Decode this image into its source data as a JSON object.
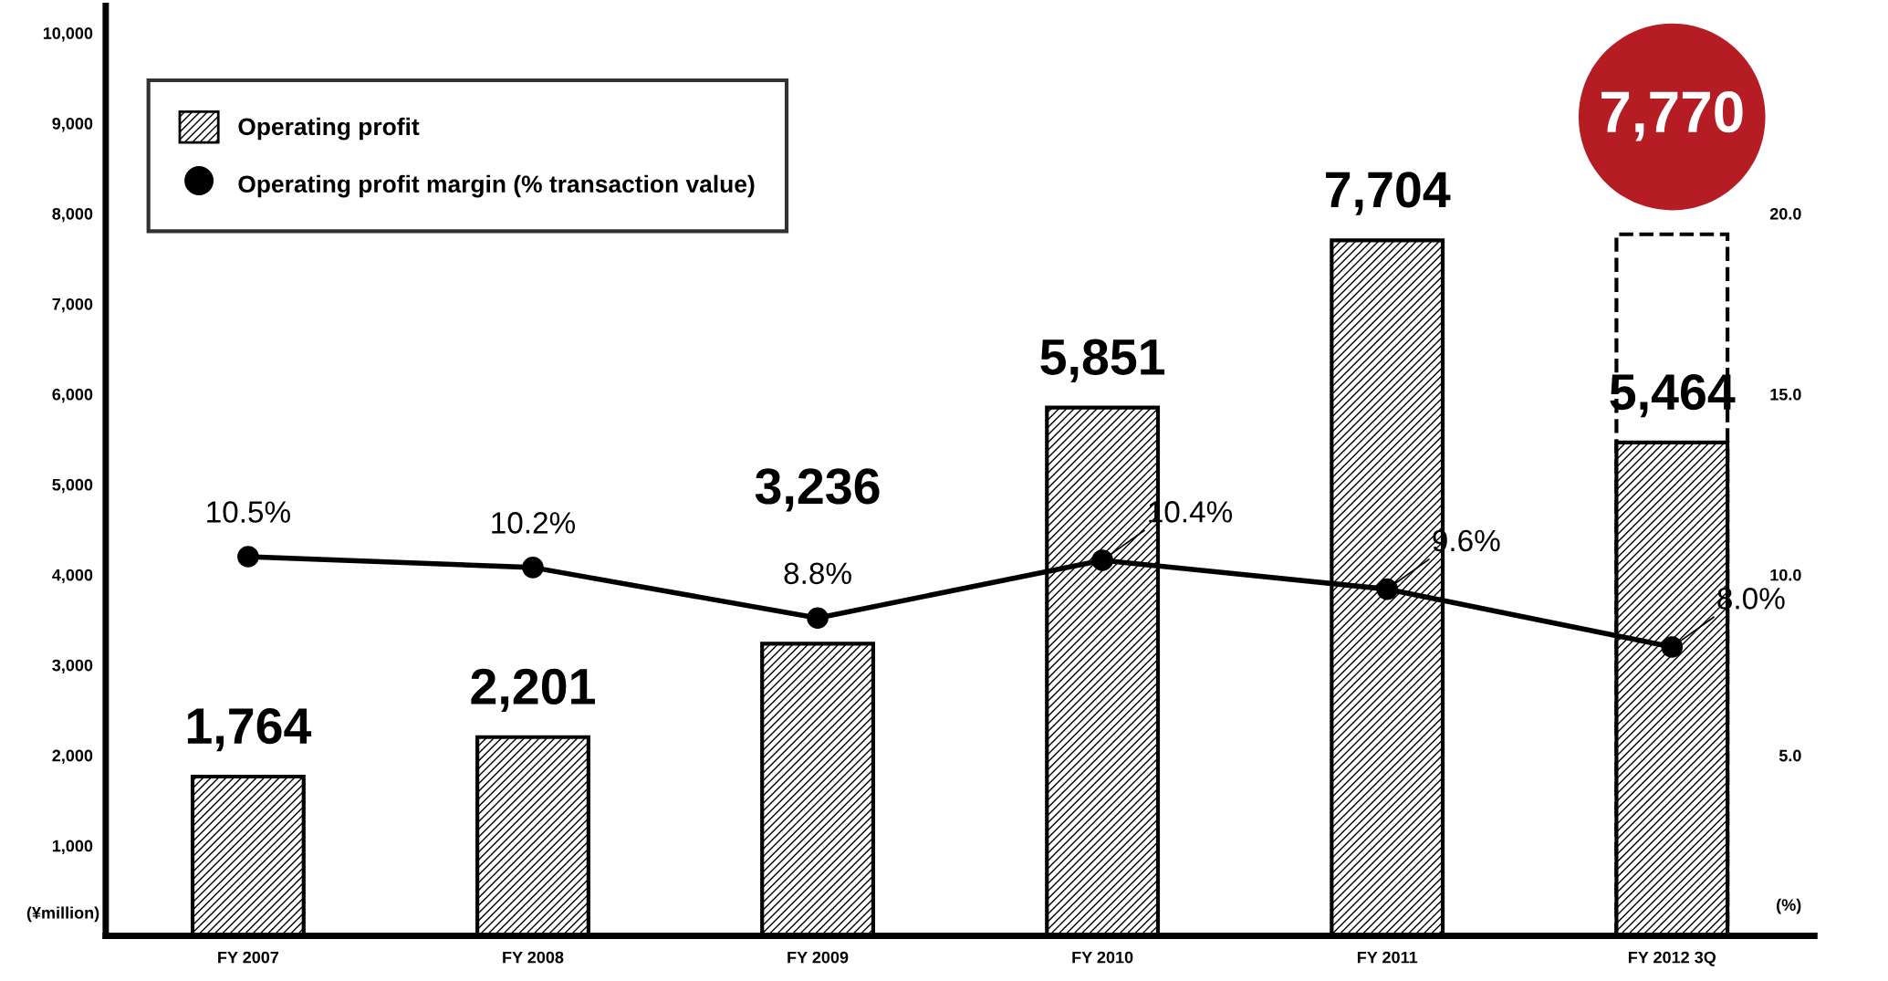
{
  "chart_data": {
    "type": "bar",
    "categories": [
      "FY 2007",
      "FY 2008",
      "FY 2009",
      "FY 2010",
      "FY 2011",
      "FY 2012 3Q"
    ],
    "series": [
      {
        "name": "Operating profit",
        "color": "#000000",
        "values": [
          1764,
          2201,
          3236,
          5851,
          7704,
          5464
        ],
        "value_labels": [
          "1,764",
          "2,201",
          "3,236",
          "5,851",
          "7,704",
          "5,464"
        ]
      },
      {
        "color": "#000000",
        "line_style": "dashed",
        "values": [
          null,
          null,
          null,
          null,
          null,
          7770
        ],
        "value_labels": [
          null,
          null,
          null,
          null,
          null,
          "7,770"
        ]
      },
      {
        "name": "Operating profit margin (% transaction value)",
        "type": "line",
        "axis": "y2",
        "color": "#000000",
        "marker": "circle",
        "values": [
          10.5,
          10.2,
          8.8,
          10.4,
          9.6,
          8.0
        ],
        "value_labels": [
          "10.5%",
          "10.2%",
          "8.8%",
          "10.4%",
          "9.6%",
          "8.0%"
        ]
      }
    ],
    "ylabel": "(¥million)",
    "y2label": "(%)",
    "ylim": [
      0,
      10300
    ],
    "yticks": [
      {
        "value": 0,
        "label": null
      },
      {
        "value": 1000,
        "label": "1,000"
      },
      {
        "value": 2000,
        "label": "2,000"
      },
      {
        "value": 3000,
        "label": "3,000"
      },
      {
        "value": 4000,
        "label": "4,000"
      },
      {
        "value": 5000,
        "label": "5,000"
      },
      {
        "value": 6000,
        "label": "6,000"
      },
      {
        "value": 7000,
        "label": "7,000"
      },
      {
        "value": 8000,
        "label": "8,000"
      },
      {
        "value": 9000,
        "label": "9,000"
      },
      {
        "value": 10000,
        "label": "10,000"
      }
    ],
    "y2lim": [
      0,
      25.75
    ],
    "y2ticks": [
      {
        "value": 5,
        "label": "5.0"
      },
      {
        "value": 10,
        "label": "10.0"
      },
      {
        "value": 15,
        "label": "15.0"
      },
      {
        "value": 20,
        "label": "20.0"
      }
    ],
    "grid": false,
    "legend": "top left"
  }
}
